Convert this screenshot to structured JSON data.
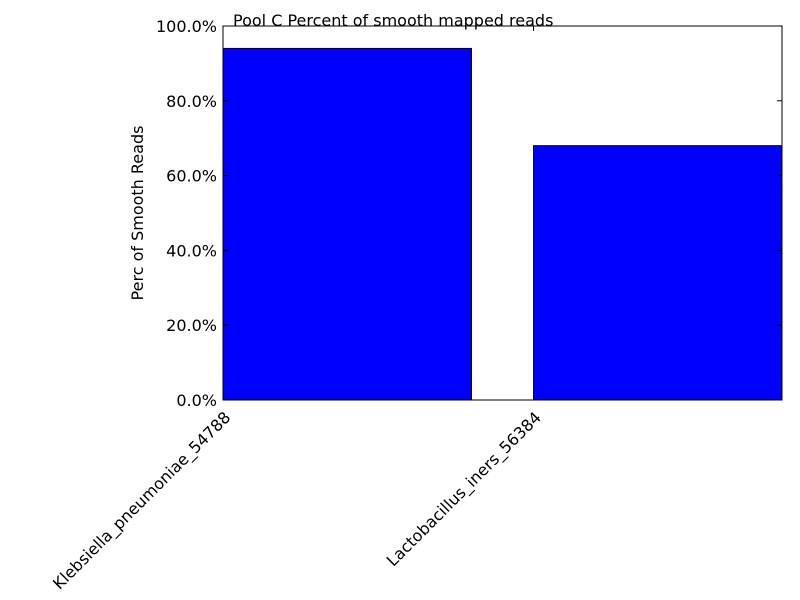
{
  "chart_data": {
    "type": "bar",
    "title": "Pool C Percent of smooth mapped reads",
    "xlabel": "",
    "ylabel": "Perc of Smooth Reads",
    "categories": [
      "Klebsiella_pneumoniae_54788",
      "Lactobacillus_iners_56384"
    ],
    "values": [
      94.0,
      68.0
    ],
    "ylim": [
      0,
      100
    ],
    "yticks": [
      "0.0%",
      "20.0%",
      "40.0%",
      "60.0%",
      "80.0%",
      "100.0%"
    ],
    "bar_color": "#0000ff",
    "grid": false,
    "legend": "none"
  }
}
